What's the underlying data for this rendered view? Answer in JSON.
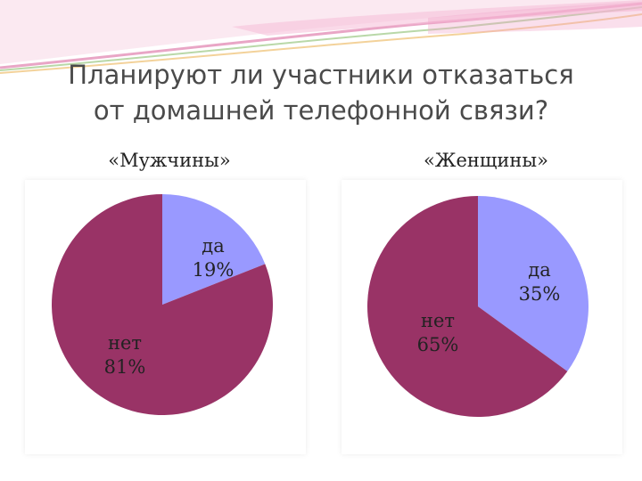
{
  "slide": {
    "title_line1": "Планируют ли участники отказаться",
    "title_line2": "от домашней телефонной связи?"
  },
  "colors": {
    "yes": "#9999ff",
    "no": "#993366",
    "background": "#ffffff"
  },
  "chart_data": [
    {
      "type": "pie",
      "title": "«Мужчины»",
      "categories": [
        "да",
        "нет"
      ],
      "values": [
        19,
        81
      ],
      "value_labels": [
        "19%",
        "81%"
      ],
      "legend": "none"
    },
    {
      "type": "pie",
      "title": "«Женщины»",
      "categories": [
        "да",
        "нет"
      ],
      "values": [
        35,
        65
      ],
      "value_labels": [
        "35%",
        "65%"
      ],
      "legend": "none"
    }
  ]
}
